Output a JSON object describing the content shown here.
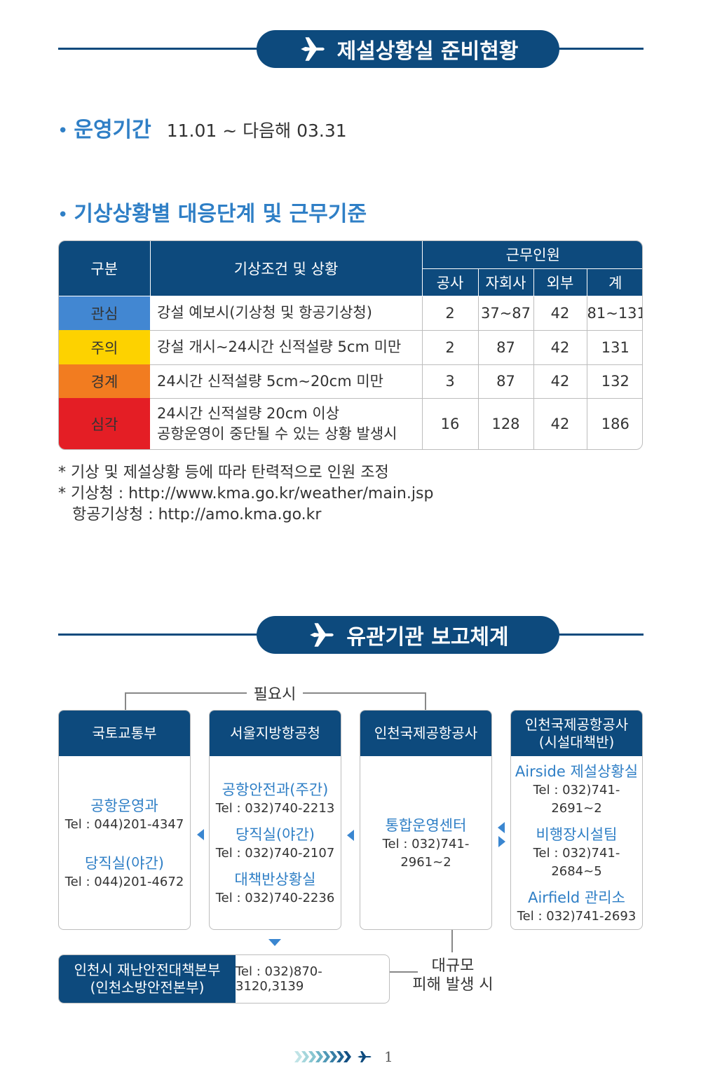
{
  "section1": {
    "title": "제설상황실 준비현황"
  },
  "operation": {
    "label": "운영기간",
    "value": "11.01 ~ 다음해 03.31"
  },
  "criteria": {
    "label": "기상상황별 대응단계 및 근무기준"
  },
  "table": {
    "headers": {
      "category": "구분",
      "condition": "기상조건 및 상황",
      "staff": "근무인원",
      "sub": [
        "공사",
        "자회사",
        "외부",
        "계"
      ]
    },
    "rows": [
      {
        "level": "관심",
        "condition": "강설 예보시(기상청 및 항공기상청)",
        "values": [
          "2",
          "37~87",
          "42",
          "81~131"
        ],
        "color": "#4287d2"
      },
      {
        "level": "주의",
        "condition": "강설 개시∼24시간 신적설량 5cm 미만",
        "values": [
          "2",
          "87",
          "42",
          "131"
        ],
        "color": "#fdd200"
      },
      {
        "level": "경계",
        "condition": "24시간 신적설량 5cm∼20cm 미만",
        "values": [
          "3",
          "87",
          "42",
          "132"
        ],
        "color": "#f27c20"
      },
      {
        "level": "심각",
        "condition": "24시간 신적설량 20cm 이상",
        "condition2": "공항운영이 중단될 수 있는 상황 발생시",
        "values": [
          "16",
          "128",
          "42",
          "186"
        ],
        "color": "#e41e25"
      }
    ]
  },
  "notes": {
    "note1": "* 기상 및 제설상황 등에 따라 탄력적으로 인원 조정",
    "note2": "* 기상청 : http://www.kma.go.kr/weather/main.jsp",
    "note3": "항공기상청 :  http://amo.kma.go.kr"
  },
  "section2": {
    "title": "유관기관 보고체계"
  },
  "orgchart": {
    "need_label": "필요시",
    "org1": {
      "name": "국토교통부",
      "dept1": "공항운영과",
      "tel1": "Tel : 044)201-4347",
      "dept2": "당직실(야간)",
      "tel2": "Tel : 044)201-4672"
    },
    "org2": {
      "name": "서울지방항공청",
      "dept1": "공항안전과(주간)",
      "tel1": "Tel : 032)740-2213",
      "dept2": "당직실(야간)",
      "tel2": "Tel : 032)740-2107",
      "dept3": "대책반상황실",
      "tel3": "Tel : 032)740-2236"
    },
    "org3": {
      "name": "인천국제공항공사",
      "dept1": "통합운영센터",
      "tel1": "Tel : 032)741-2961~2"
    },
    "org4": {
      "name1": "인천국제공항공사",
      "name2": "(시설대책반)",
      "dept1": "Airside 제설상황실",
      "tel1": "Tel : 032)741-2691~2",
      "dept2": "비행장시설팀",
      "tel2": "Tel : 032)741-2684~5",
      "dept3": "Airfield 관리소",
      "tel3": "Tel : 032)741-2693"
    },
    "incheon": {
      "name1": "인천시 재난안전대책본부",
      "name2": "(인천소방안전본부)",
      "tel": "Tel : 032)870-3120,3139"
    },
    "large_label1": "대규모",
    "large_label2": "피해 발생 시"
  },
  "footer": {
    "page": "1"
  },
  "colors": {
    "navy": "#0d4a7d",
    "accent_blue": "#2f7fc6"
  },
  "icons": {
    "header": "airplane-icon",
    "footer": "chevron-arrows-icon"
  }
}
